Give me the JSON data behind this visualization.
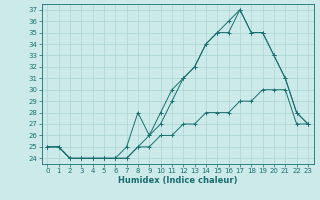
{
  "xlabel": "Humidex (Indice chaleur)",
  "bg_color": "#cceaea",
  "grid_color": "#aad4d4",
  "line_color": "#1a6e6e",
  "xlim": [
    -0.5,
    23.5
  ],
  "ylim": [
    23.5,
    37.5
  ],
  "xticks": [
    0,
    1,
    2,
    3,
    4,
    5,
    6,
    7,
    8,
    9,
    10,
    11,
    12,
    13,
    14,
    15,
    16,
    17,
    18,
    19,
    20,
    21,
    22,
    23
  ],
  "yticks": [
    24,
    25,
    26,
    27,
    28,
    29,
    30,
    31,
    32,
    33,
    34,
    35,
    36,
    37
  ],
  "line1_x": [
    0,
    1,
    2,
    3,
    4,
    5,
    6,
    7,
    8,
    9,
    10,
    11,
    12,
    13,
    14,
    15,
    16,
    17,
    18,
    19,
    20,
    21,
    22,
    23
  ],
  "line1_y": [
    25,
    25,
    24,
    24,
    24,
    24,
    24,
    25,
    28,
    26,
    28,
    30,
    31,
    32,
    34,
    35,
    35,
    37,
    35,
    35,
    33,
    31,
    28,
    27
  ],
  "line2_x": [
    0,
    1,
    2,
    3,
    4,
    5,
    6,
    7,
    8,
    9,
    10,
    11,
    12,
    13,
    14,
    15,
    16,
    17,
    18,
    19,
    20,
    21,
    22,
    23
  ],
  "line2_y": [
    25,
    25,
    24,
    24,
    24,
    24,
    24,
    24,
    25,
    26,
    27,
    29,
    31,
    32,
    34,
    35,
    36,
    37,
    35,
    35,
    33,
    31,
    28,
    27
  ],
  "line3_x": [
    0,
    1,
    2,
    3,
    4,
    5,
    6,
    7,
    8,
    9,
    10,
    11,
    12,
    13,
    14,
    15,
    16,
    17,
    18,
    19,
    20,
    21,
    22,
    23
  ],
  "line3_y": [
    25,
    25,
    24,
    24,
    24,
    24,
    24,
    24,
    25,
    25,
    26,
    26,
    27,
    27,
    28,
    28,
    28,
    29,
    29,
    30,
    30,
    30,
    27,
    27
  ]
}
